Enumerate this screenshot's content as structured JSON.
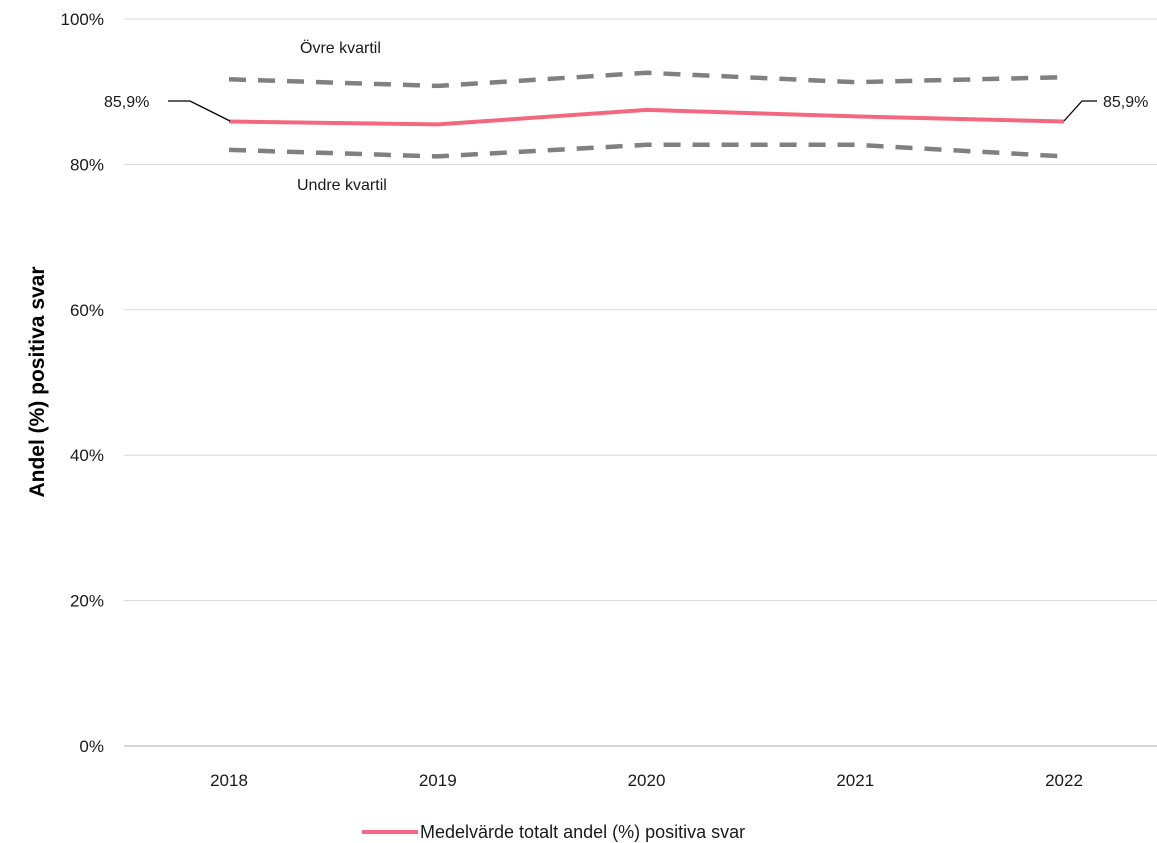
{
  "chart_data": {
    "type": "line",
    "categories": [
      "2018",
      "2019",
      "2020",
      "2021",
      "2022"
    ],
    "ylabel": "Andel (%) positiva svar",
    "ylim": [
      0,
      100
    ],
    "y_ticks": [
      0,
      20,
      40,
      60,
      80,
      100
    ],
    "y_tick_labels": [
      "0%",
      "20%",
      "40%",
      "60%",
      "80%",
      "100%"
    ],
    "grid": true,
    "series": [
      {
        "name": "Medelvärde totalt andel (%) positiva svar",
        "values": [
          85.9,
          85.5,
          87.5,
          86.6,
          85.9
        ],
        "color": "#f4687f",
        "style": "solid"
      },
      {
        "name": "Övre kvartil",
        "values": [
          91.7,
          90.8,
          92.6,
          91.3,
          92.0
        ],
        "color": "#808080",
        "style": "dashed"
      },
      {
        "name": "Undre kvartil",
        "values": [
          82.0,
          81.1,
          82.7,
          82.7,
          81.1
        ],
        "color": "#808080",
        "style": "dashed"
      }
    ],
    "data_labels": {
      "first": "85,9%",
      "last": "85,9%"
    },
    "annotations": {
      "upper": "Övre kvartil",
      "lower": "Undre kvartil"
    },
    "legend": {
      "position": "bottom",
      "label": "Medelvärde totalt andel (%) positiva svar"
    }
  }
}
